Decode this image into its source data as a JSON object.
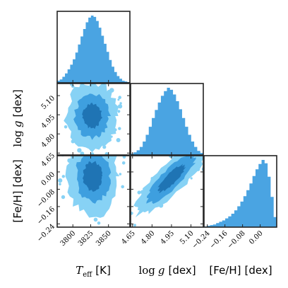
{
  "chart_data": {
    "type": "corner",
    "colors": {
      "histogram": "#4aa4e2",
      "contour_outer": "#87d2f5",
      "contour_mid": "#3e9fdf",
      "contour_inner": "#1f74b4"
    },
    "parameters": [
      {
        "key": "teff",
        "label_main": "T",
        "label_sub": "eff",
        "label_unit": "[K]",
        "range": [
          3778,
          3880
        ],
        "ticks": [
          3800,
          3825,
          3850
        ],
        "tick_labels": [
          "3800",
          "3825",
          "3850"
        ],
        "hist_counts": [
          0.03,
          0.05,
          0.09,
          0.14,
          0.2,
          0.27,
          0.35,
          0.45,
          0.57,
          0.69,
          0.8,
          0.9,
          0.97,
          1.0,
          0.98,
          0.92,
          0.82,
          0.7,
          0.58,
          0.46,
          0.34,
          0.24,
          0.16,
          0.1,
          0.06,
          0.03,
          0.02,
          0.01
        ]
      },
      {
        "key": "logg",
        "label_main": "log",
        "label_var": "g",
        "label_unit": "[dex]",
        "range": [
          4.635,
          5.195
        ],
        "ticks": [
          4.65,
          4.8,
          4.95,
          5.1
        ],
        "tick_labels": [
          "4.65",
          "4.80",
          "4.95",
          "5.10"
        ],
        "hist_counts": [
          0.02,
          0.04,
          0.07,
          0.12,
          0.2,
          0.3,
          0.42,
          0.55,
          0.67,
          0.78,
          0.88,
          0.95,
          1.0,
          0.97,
          0.9,
          0.8,
          0.68,
          0.55,
          0.42,
          0.3,
          0.2,
          0.12,
          0.06,
          0.03
        ]
      },
      {
        "key": "feh",
        "label_main": "[Fe/H]",
        "label_unit": "[dex]",
        "range": [
          -0.255,
          0.075
        ],
        "ticks": [
          -0.24,
          -0.16,
          -0.08,
          0.0
        ],
        "tick_labels": [
          "−0.24",
          "−0.16",
          "−0.08",
          "0.00"
        ],
        "hist_counts": [
          0.01,
          0.02,
          0.03,
          0.04,
          0.06,
          0.08,
          0.1,
          0.13,
          0.16,
          0.2,
          0.25,
          0.31,
          0.38,
          0.46,
          0.55,
          0.65,
          0.76,
          0.86,
          0.94,
          1.0,
          0.95,
          0.75,
          0.45,
          0.15
        ]
      }
    ],
    "pairs": [
      {
        "x": "teff",
        "y": "logg",
        "center": [
          3827,
          4.94
        ],
        "spread": [
          14,
          0.1
        ],
        "corr": 0.05
      },
      {
        "x": "teff",
        "y": "feh",
        "center": [
          3828,
          -0.02
        ],
        "spread": [
          14,
          0.07
        ],
        "corr": -0.15
      },
      {
        "x": "logg",
        "y": "feh",
        "center": [
          4.95,
          -0.03
        ],
        "spread": [
          0.1,
          0.07
        ],
        "corr": 0.85
      }
    ]
  }
}
